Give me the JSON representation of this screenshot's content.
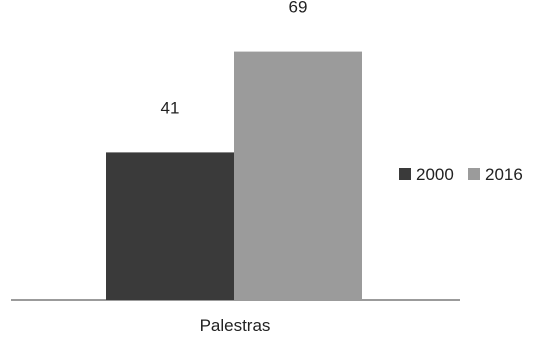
{
  "chart_data": {
    "type": "bar",
    "categories": [
      "Palestras"
    ],
    "series": [
      {
        "name": "2000",
        "values": [
          41
        ],
        "color": "#3a3a3a"
      },
      {
        "name": "2016",
        "values": [
          69
        ],
        "color": "#9b9b9b"
      }
    ],
    "data_labels": [
      "41",
      "69"
    ],
    "title": "",
    "xlabel": "",
    "ylabel": "",
    "ylim": [
      0,
      80
    ],
    "grid": false,
    "legend": "right",
    "axis_color": "#7a7a7a"
  }
}
